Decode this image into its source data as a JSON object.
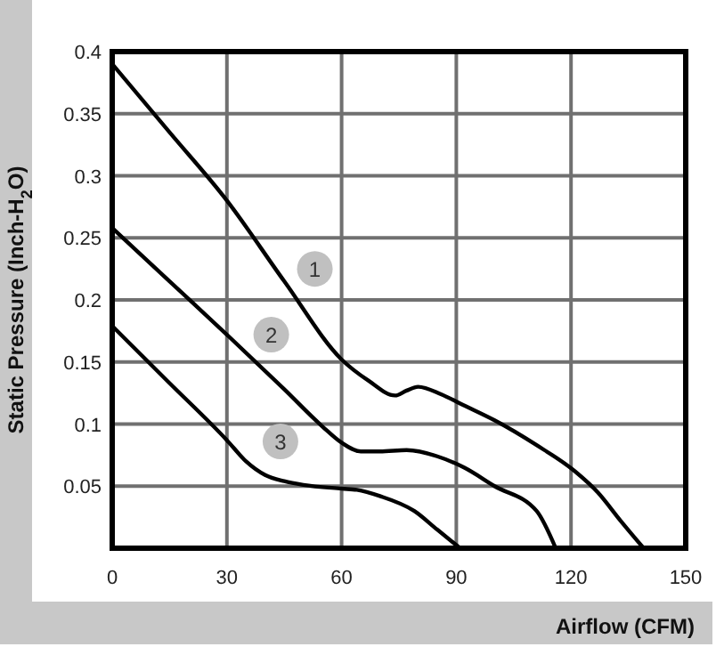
{
  "chart_data": {
    "type": "line",
    "xlabel": "Airflow (CFM)",
    "ylabel": "Static Pressure (Inch-H$_{2}$O)",
    "xlim": [
      0,
      150
    ],
    "xticks": [
      0,
      30,
      60,
      90,
      120,
      150
    ],
    "ylim": [
      0,
      0.4
    ],
    "yticks": [
      {
        "value": 0,
        "label": null
      },
      0.05,
      0.1,
      0.15,
      0.2,
      0.25,
      0.3,
      0.35,
      0.4
    ],
    "grid": true,
    "line_style": "solid",
    "series": [
      {
        "color": "#000000",
        "x": [
          0,
          15,
          30,
          45,
          60,
          67,
          74,
          77,
          80,
          86,
          92,
          100,
          111,
          121,
          127,
          133,
          139
        ],
        "values": [
          0.39,
          0.335,
          0.28,
          0.215,
          0.152,
          0.135,
          0.123,
          0.127,
          0.13,
          0.124,
          0.115,
          0.103,
          0.083,
          0.062,
          0.045,
          0.022,
          0
        ]
      },
      {
        "color": "#000000",
        "x": [
          0,
          15,
          30,
          45,
          55,
          60,
          65,
          70,
          77,
          85,
          92,
          100,
          111,
          116
        ],
        "values": [
          0.258,
          0.215,
          0.172,
          0.128,
          0.098,
          0.085,
          0.078,
          0.078,
          0.079,
          0.074,
          0.065,
          0.05,
          0.03,
          0
        ]
      },
      {
        "color": "#000000",
        "x": [
          0,
          15,
          30,
          35,
          40,
          45,
          50,
          60,
          64,
          70,
          79,
          85,
          91
        ],
        "values": [
          0.179,
          0.133,
          0.087,
          0.07,
          0.059,
          0.054,
          0.051,
          0.048,
          0.047,
          0.042,
          0.03,
          0.015,
          0
        ]
      }
    ],
    "annotations": [
      {
        "text": "1",
        "x": 53,
        "y": 0.225
      },
      {
        "text": "2",
        "x": 41.6,
        "y": 0.172
      },
      {
        "text": "3",
        "x": 44,
        "y": 0.086
      }
    ]
  }
}
